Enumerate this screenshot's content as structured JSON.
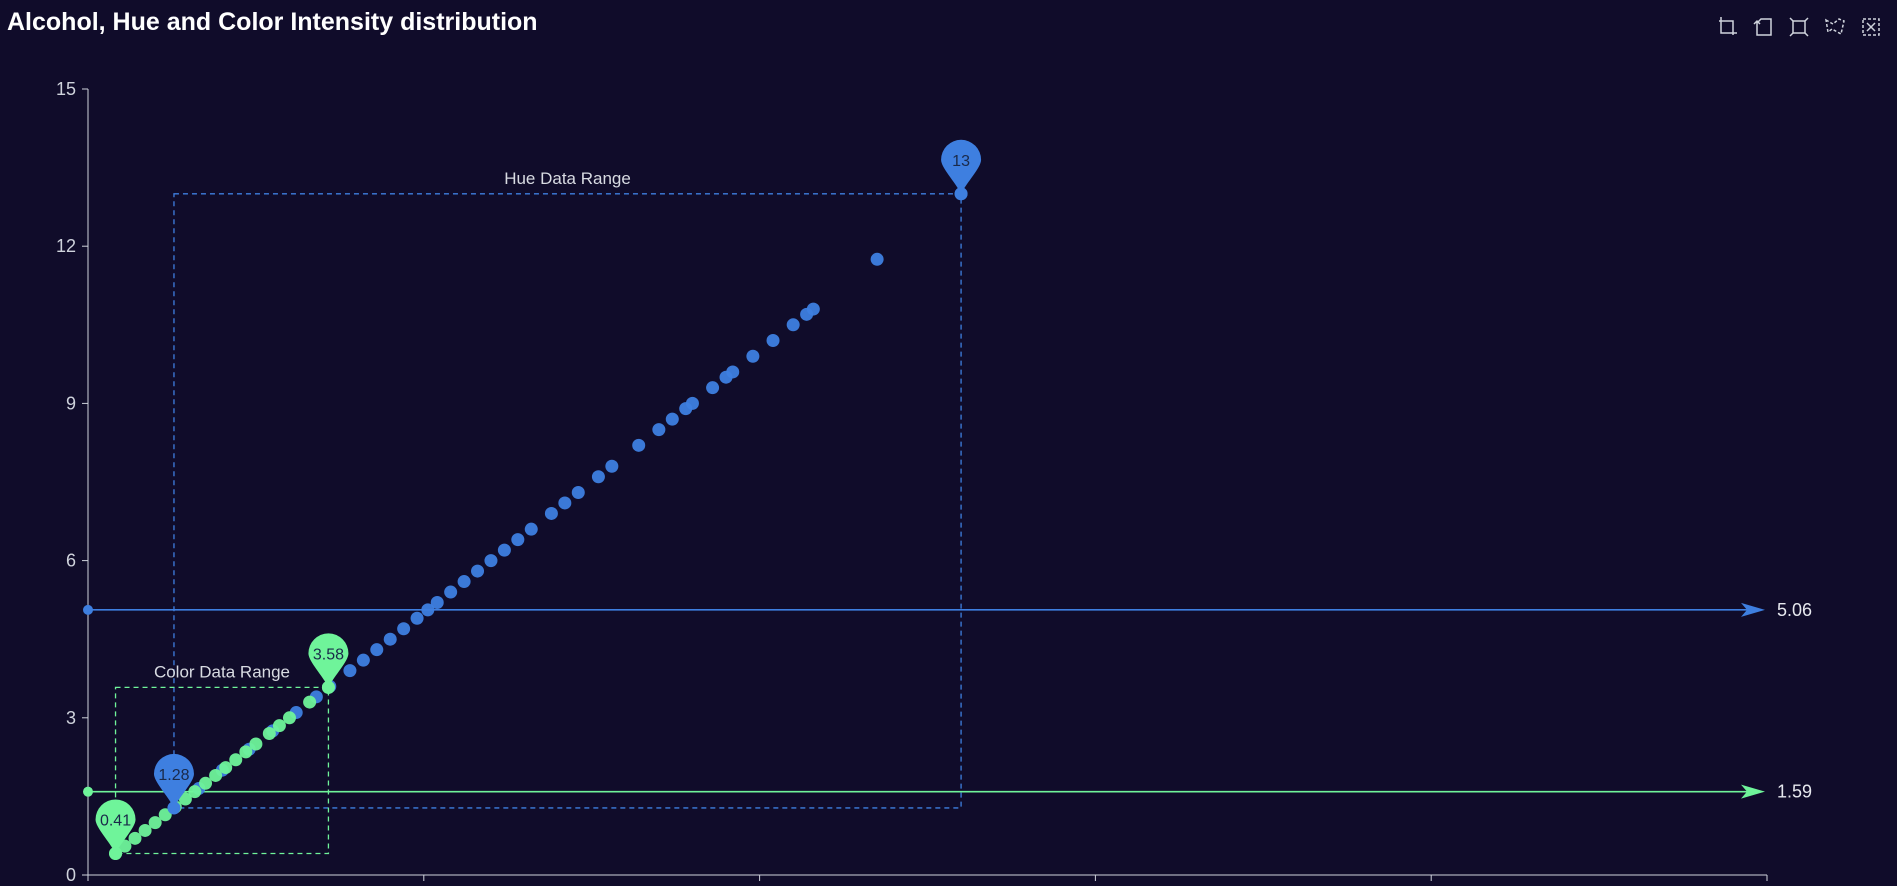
{
  "title": "Alcohol, Hue and Color Intensity distribution",
  "toolbox": {
    "icons": [
      "rect-select-icon",
      "polygon-select-icon",
      "keep-selection-icon",
      "clear-selection-icon",
      "restore-icon"
    ]
  },
  "colors": {
    "background": "#100c2a",
    "hue": "#3e7fe0",
    "color": "#6ff49a",
    "axis": "#cfd3dc"
  },
  "chart_data": {
    "type": "scatter",
    "title": "Alcohol, Hue and Color Intensity distribution",
    "xlim": [
      0,
      25
    ],
    "ylim": [
      0,
      15
    ],
    "y_ticks": [
      "0",
      "3",
      "6",
      "9",
      "12",
      "15"
    ],
    "x_ticks_count": 6,
    "grid": false,
    "series": [
      {
        "name_visible": false,
        "color": "#3e7fe0",
        "x": [
          1.28,
          1.65,
          2.0,
          2.4,
          2.75,
          3.1,
          3.4,
          3.6,
          3.9,
          4.1,
          4.3,
          4.5,
          4.7,
          4.9,
          5.06,
          5.2,
          5.4,
          5.6,
          5.8,
          6.0,
          6.2,
          6.4,
          6.6,
          6.9,
          7.1,
          7.3,
          7.6,
          7.8,
          8.2,
          8.5,
          8.7,
          8.9,
          9.0,
          9.3,
          9.5,
          9.6,
          9.9,
          10.2,
          10.5,
          10.7,
          10.8,
          11.75,
          13.0
        ],
        "y": [
          1.28,
          1.65,
          2.0,
          2.4,
          2.75,
          3.1,
          3.4,
          3.6,
          3.9,
          4.1,
          4.3,
          4.5,
          4.7,
          4.9,
          5.06,
          5.2,
          5.4,
          5.6,
          5.8,
          6.0,
          6.2,
          6.4,
          6.6,
          6.9,
          7.1,
          7.3,
          7.6,
          7.8,
          8.2,
          8.5,
          8.7,
          8.9,
          9.0,
          9.3,
          9.5,
          9.6,
          9.9,
          10.2,
          10.5,
          10.7,
          10.8,
          11.75,
          13.0
        ]
      },
      {
        "name_visible": false,
        "color": "#6ff49a",
        "x": [
          0.41,
          0.55,
          0.7,
          0.85,
          1.0,
          1.15,
          1.3,
          1.45,
          1.59,
          1.75,
          1.9,
          2.05,
          2.2,
          2.35,
          2.5,
          2.7,
          2.85,
          3.0,
          3.3,
          3.58
        ],
        "y": [
          0.41,
          0.55,
          0.7,
          0.85,
          1.0,
          1.15,
          1.3,
          1.45,
          1.59,
          1.75,
          1.9,
          2.05,
          2.2,
          2.35,
          2.5,
          2.7,
          2.85,
          3.0,
          3.3,
          3.58
        ]
      }
    ],
    "mark_points": [
      {
        "label": "13",
        "x": 13.0,
        "y": 13.0,
        "color": "#3e7fe0"
      },
      {
        "label": "1.28",
        "x": 1.28,
        "y": 1.28,
        "color": "#3e7fe0"
      },
      {
        "label": "3.58",
        "x": 3.58,
        "y": 3.58,
        "color": "#6ff49a"
      },
      {
        "label": "0.41",
        "x": 0.41,
        "y": 0.41,
        "color": "#6ff49a"
      }
    ],
    "mark_lines": [
      {
        "label": "5.06",
        "y": 5.06,
        "color": "#3e7fe0"
      },
      {
        "label": "1.59",
        "y": 1.59,
        "color": "#6ff49a"
      }
    ],
    "mark_areas": [
      {
        "label": "Hue Data Range",
        "x": [
          1.28,
          13.0
        ],
        "y": [
          1.28,
          13.0
        ],
        "color": "#3e7fe0"
      },
      {
        "label": "Color Data Range",
        "x": [
          0.41,
          3.58
        ],
        "y": [
          0.41,
          3.58
        ],
        "color": "#6ff49a"
      }
    ]
  }
}
